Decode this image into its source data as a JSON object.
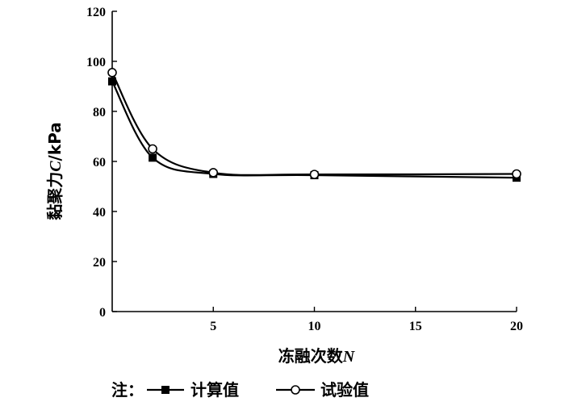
{
  "chart_data": {
    "type": "line",
    "xlabel_prefix": "冻融次数",
    "xlabel_var": "N",
    "ylabel_prefix": "黏聚力",
    "ylabel_var": "C",
    "ylabel_suffix": "/kPa",
    "xlim": [
      0,
      20
    ],
    "ylim": [
      0,
      120
    ],
    "xticks": [
      5,
      10,
      15,
      20
    ],
    "yticks": [
      0,
      20,
      40,
      60,
      80,
      100,
      120
    ],
    "legend_note": "注：",
    "series": [
      {
        "name": "计算值",
        "marker": "filled-square",
        "color": "#000000",
        "x": [
          0,
          2,
          5,
          10,
          20
        ],
        "y": [
          92,
          61.5,
          55,
          54.5,
          53.5
        ]
      },
      {
        "name": "试验值",
        "marker": "open-circle",
        "color": "#000000",
        "x": [
          0,
          2,
          5,
          10,
          20
        ],
        "y": [
          95.5,
          65,
          55.5,
          54.8,
          55
        ]
      }
    ]
  }
}
